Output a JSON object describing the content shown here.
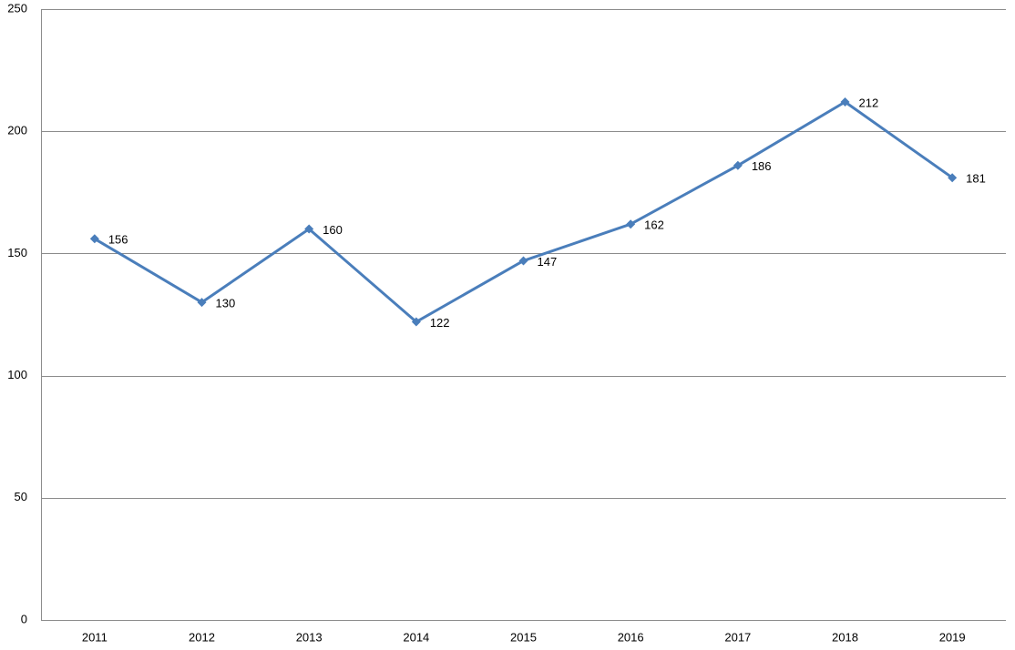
{
  "chart_data": {
    "type": "line",
    "categories": [
      "2011",
      "2012",
      "2013",
      "2014",
      "2015",
      "2016",
      "2017",
      "2018",
      "2019"
    ],
    "series": [
      {
        "color": "#4a7ebb",
        "values": [
          156,
          130,
          160,
          122,
          147,
          162,
          186,
          212,
          181
        ]
      }
    ],
    "ylim": [
      0,
      250
    ],
    "yticks": [
      0,
      50,
      100,
      150,
      200,
      250
    ],
    "grid": true,
    "data_labels": true
  }
}
